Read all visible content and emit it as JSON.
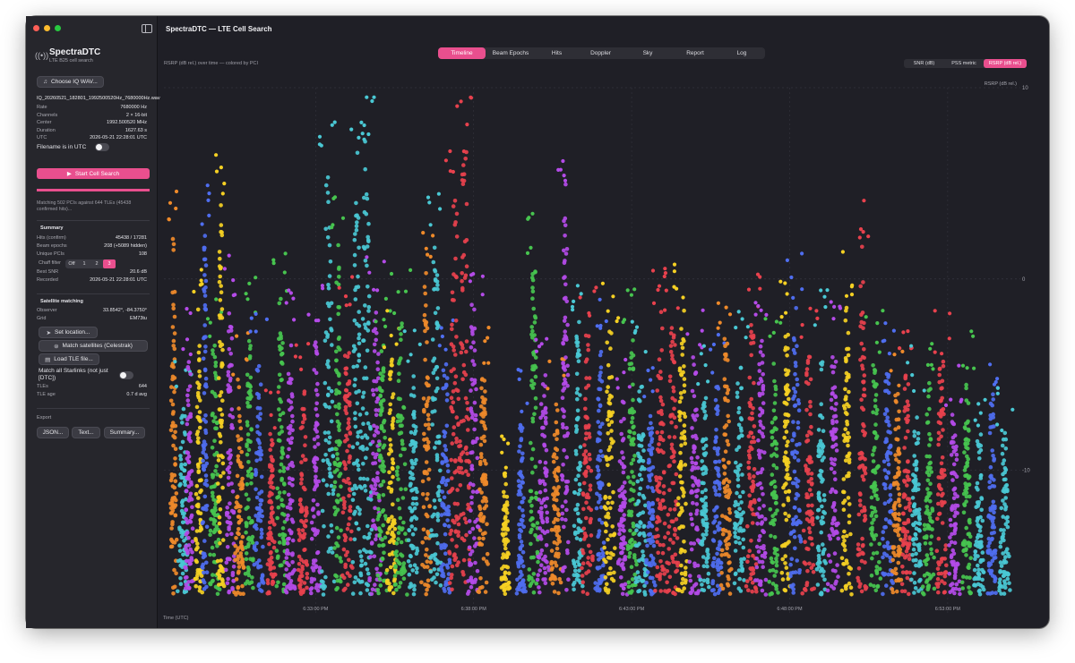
{
  "window": {
    "title": "SpectraDTC — LTE Cell Search"
  },
  "sidebar": {
    "app_logo": "((•))",
    "app_name": "SpectraDTC",
    "app_subtitle": "LTE B25 cell search",
    "choose_button": "Choose IQ WAV...",
    "file": {
      "name": "IQ_20260521_182801_1992500520Hz_7680000Hz.wav",
      "rows": [
        {
          "k": "Rate",
          "v": "7680000 Hz"
        },
        {
          "k": "Channels",
          "v": "2 × 16-bit"
        },
        {
          "k": "Center",
          "v": "1992.500520 MHz"
        },
        {
          "k": "Duration",
          "v": "1627.63 s"
        },
        {
          "k": "UTC",
          "v": "2026-05-21 22:28:01 UTC"
        }
      ]
    },
    "utc_toggle_label": "Filename is in UTC",
    "start_button": "Start Cell Search",
    "progress": 1.0,
    "matching_text": "Matching 502 PCIs against 644 TLEs (45438 confirmed hits)...",
    "summary": {
      "title": "Summary",
      "rows": [
        {
          "k": "Hits (confirm)",
          "v": "45438 / 17281"
        },
        {
          "k": "Beam epochs",
          "v": "208  (+5089 hidden)"
        },
        {
          "k": "Unique PCIs",
          "v": "108"
        }
      ],
      "chaff_label": "Chaff filter",
      "chaff_options": [
        "Off",
        "1",
        "2",
        "3"
      ],
      "chaff_selected": "3",
      "rows2": [
        {
          "k": "Best SNR",
          "v": "20.6 dB"
        },
        {
          "k": "Recorded",
          "v": "2026-05-21 22:28:01 UTC"
        }
      ]
    },
    "satellite": {
      "title": "Satellite matching",
      "rows": [
        {
          "k": "Observer",
          "v": "33.8542°, -84.3750°"
        },
        {
          "k": "Grid",
          "v": "EM73tu"
        }
      ],
      "set_location": "Set location...",
      "match_satellites": "Match satellites (Celestrak)",
      "load_tle": "Load TLE file...",
      "match_all_label": "Match all Starlinks (not just [DTC])",
      "rows2": [
        {
          "k": "TLEs",
          "v": "644"
        },
        {
          "k": "TLE age",
          "v": "0.7 d avg"
        }
      ]
    },
    "export": {
      "title": "Export",
      "buttons": [
        "JSON...",
        "Text...",
        "Summary..."
      ]
    }
  },
  "tabs": [
    "Timeline",
    "Beam Epochs",
    "Hits",
    "Doppler",
    "Sky",
    "Report",
    "Log"
  ],
  "active_tab": "Timeline",
  "chart_caption": "RSRP (dB rel.) over time — colored by PCI",
  "metric_options": [
    "SNR (dB)",
    "PSS metric",
    "RSRP (dB rel.)"
  ],
  "active_metric": "RSRP (dB rel.)",
  "colors": {
    "accent": "#e94f8e",
    "palette": [
      "#e8414d",
      "#47c44f",
      "#4ac8d4",
      "#b44be8",
      "#f5d023",
      "#4f6ef0",
      "#ef8a2a"
    ]
  },
  "chart_data": {
    "type": "scatter",
    "xlabel": "Time (UTC)",
    "ylabel": "RSRP (dB rel.)",
    "x_ticks": [
      "6:33:00 PM",
      "6:38:00 PM",
      "6:43:00 PM",
      "6:48:00 PM",
      "6:53:00 PM"
    ],
    "x_tick_minutes": [
      33,
      38,
      43,
      48,
      53
    ],
    "xlim_minutes": [
      28.2,
      55.3
    ],
    "y_ticks": [
      10,
      0,
      -10
    ],
    "ylim": [
      -17.5,
      10
    ],
    "grid": true,
    "series_note_colors": [
      "#e8414d",
      "#47c44f",
      "#4ac8d4",
      "#b44be8",
      "#f5d023",
      "#4f6ef0",
      "#ef8a2a"
    ],
    "beams": [
      {
        "t": 28.5,
        "top": 2.8,
        "w": 0.12,
        "c": 6
      },
      {
        "t": 28.8,
        "top": -6,
        "w": 0.18,
        "c": 2
      },
      {
        "t": 29.0,
        "top": -4,
        "w": 0.15,
        "c": 3
      },
      {
        "t": 29.3,
        "top": -1,
        "w": 0.12,
        "c": 4
      },
      {
        "t": 29.5,
        "top": 2.5,
        "w": 0.1,
        "c": 5
      },
      {
        "t": 29.8,
        "top": -3,
        "w": 0.18,
        "c": 1
      },
      {
        "t": 30.0,
        "top": 4.2,
        "w": 0.12,
        "c": 4
      },
      {
        "t": 30.3,
        "top": -1,
        "w": 0.15,
        "c": 3
      },
      {
        "t": 30.6,
        "top": -5,
        "w": 0.18,
        "c": 6
      },
      {
        "t": 30.9,
        "top": -2,
        "w": 0.14,
        "c": 1
      },
      {
        "t": 31.2,
        "top": -4,
        "w": 0.18,
        "c": 5
      },
      {
        "t": 31.6,
        "top": -8,
        "w": 0.15,
        "c": 0
      },
      {
        "t": 31.9,
        "top": -1,
        "w": 0.16,
        "c": 1
      },
      {
        "t": 32.2,
        "top": -3,
        "w": 0.15,
        "c": 3
      },
      {
        "t": 32.6,
        "top": -5,
        "w": 0.18,
        "c": 0
      },
      {
        "t": 33.0,
        "top": -2.5,
        "w": 0.16,
        "c": 3
      },
      {
        "t": 33.4,
        "top": 6,
        "w": 0.22,
        "c": 2
      },
      {
        "t": 33.7,
        "top": 2,
        "w": 0.14,
        "c": 1
      },
      {
        "t": 34.0,
        "top": -2,
        "w": 0.18,
        "c": 0
      },
      {
        "t": 34.3,
        "top": 7,
        "w": 0.18,
        "c": 2
      },
      {
        "t": 34.6,
        "top": 7.5,
        "w": 0.2,
        "c": 2
      },
      {
        "t": 34.9,
        "top": -1,
        "w": 0.22,
        "c": 3
      },
      {
        "t": 35.1,
        "top": -3,
        "w": 0.18,
        "c": 1
      },
      {
        "t": 35.4,
        "top": -4,
        "w": 0.16,
        "c": 4
      },
      {
        "t": 35.7,
        "top": -2,
        "w": 0.22,
        "c": 1
      },
      {
        "t": 36.1,
        "top": -5,
        "w": 0.2,
        "c": 2
      },
      {
        "t": 36.5,
        "top": 1,
        "w": 0.16,
        "c": 6
      },
      {
        "t": 36.8,
        "top": 2.2,
        "w": 0.2,
        "c": 2
      },
      {
        "t": 37.1,
        "top": -4,
        "w": 0.18,
        "c": 5
      },
      {
        "t": 37.4,
        "top": 5,
        "w": 0.2,
        "c": 0
      },
      {
        "t": 37.7,
        "top": 7.5,
        "w": 0.22,
        "c": 0
      },
      {
        "t": 38.0,
        "top": -1,
        "w": 0.2,
        "c": 3
      },
      {
        "t": 38.3,
        "top": -5,
        "w": 0.18,
        "c": 6
      },
      {
        "t": 39.0,
        "top": -10,
        "w": 0.15,
        "c": 4
      },
      {
        "t": 39.5,
        "top": -7,
        "w": 0.15,
        "c": 5
      },
      {
        "t": 39.9,
        "top": 1,
        "w": 0.16,
        "c": 1
      },
      {
        "t": 40.2,
        "top": -4,
        "w": 0.2,
        "c": 3
      },
      {
        "t": 40.6,
        "top": -6,
        "w": 0.18,
        "c": 6
      },
      {
        "t": 40.9,
        "top": 5,
        "w": 0.15,
        "c": 3
      },
      {
        "t": 41.3,
        "top": -2,
        "w": 0.16,
        "c": 2
      },
      {
        "t": 41.6,
        "top": -2,
        "w": 0.2,
        "c": 0
      },
      {
        "t": 42.0,
        "top": -3,
        "w": 0.16,
        "c": 5
      },
      {
        "t": 42.3,
        "top": -2.5,
        "w": 0.22,
        "c": 4
      },
      {
        "t": 42.7,
        "top": -6,
        "w": 0.16,
        "c": 3
      },
      {
        "t": 43.0,
        "top": -3,
        "w": 0.18,
        "c": 1
      },
      {
        "t": 43.3,
        "top": -4,
        "w": 0.2,
        "c": 2
      },
      {
        "t": 43.6,
        "top": -7,
        "w": 0.16,
        "c": 5
      },
      {
        "t": 43.9,
        "top": -1.5,
        "w": 0.2,
        "c": 0
      },
      {
        "t": 44.3,
        "top": -2,
        "w": 0.2,
        "c": 0
      },
      {
        "t": 44.6,
        "top": -1.5,
        "w": 0.18,
        "c": 4
      },
      {
        "t": 45.0,
        "top": -4,
        "w": 0.2,
        "c": 3
      },
      {
        "t": 45.3,
        "top": -6,
        "w": 0.15,
        "c": 2
      },
      {
        "t": 45.7,
        "top": -5,
        "w": 0.16,
        "c": 5
      },
      {
        "t": 46.0,
        "top": -3,
        "w": 0.18,
        "c": 6
      },
      {
        "t": 46.4,
        "top": -4,
        "w": 0.2,
        "c": 2
      },
      {
        "t": 46.8,
        "top": -2,
        "w": 0.18,
        "c": 0
      },
      {
        "t": 47.1,
        "top": -3,
        "w": 0.2,
        "c": 3
      },
      {
        "t": 47.5,
        "top": -4,
        "w": 0.18,
        "c": 1
      },
      {
        "t": 47.9,
        "top": -2,
        "w": 0.16,
        "c": 4
      },
      {
        "t": 48.2,
        "top": -1,
        "w": 0.2,
        "c": 5
      },
      {
        "t": 48.6,
        "top": -4,
        "w": 0.2,
        "c": 0
      },
      {
        "t": 49.0,
        "top": -3,
        "w": 0.16,
        "c": 2
      },
      {
        "t": 49.4,
        "top": -3.5,
        "w": 0.2,
        "c": 3
      },
      {
        "t": 49.8,
        "top": -1,
        "w": 0.16,
        "c": 4
      },
      {
        "t": 50.3,
        "top": 2,
        "w": 0.15,
        "c": 0
      },
      {
        "t": 50.7,
        "top": -4,
        "w": 0.2,
        "c": 1
      },
      {
        "t": 51.1,
        "top": -4.5,
        "w": 0.2,
        "c": 5
      },
      {
        "t": 51.4,
        "top": -6,
        "w": 0.18,
        "c": 6
      },
      {
        "t": 51.7,
        "top": -4,
        "w": 0.16,
        "c": 0
      },
      {
        "t": 52.0,
        "top": -6,
        "w": 0.18,
        "c": 2
      },
      {
        "t": 52.4,
        "top": -5,
        "w": 0.2,
        "c": 1
      },
      {
        "t": 52.8,
        "top": -4,
        "w": 0.18,
        "c": 0
      },
      {
        "t": 53.2,
        "top": -7,
        "w": 0.2,
        "c": 3
      },
      {
        "t": 53.6,
        "top": -5,
        "w": 0.16,
        "c": 1
      },
      {
        "t": 54.0,
        "top": -8,
        "w": 0.18,
        "c": 2
      },
      {
        "t": 54.4,
        "top": -6,
        "w": 0.16,
        "c": 5
      },
      {
        "t": 54.8,
        "top": -8,
        "w": 0.18,
        "c": 2
      }
    ]
  }
}
